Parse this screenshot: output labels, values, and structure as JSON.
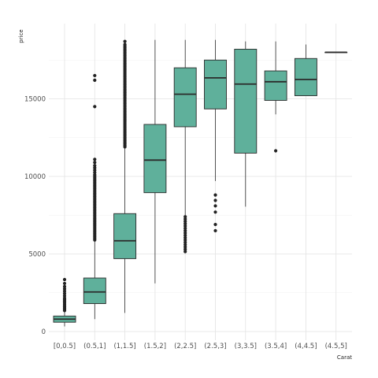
{
  "chart_data": {
    "type": "box",
    "xlabel": "Carat",
    "ylabel": "price",
    "ylim": [
      0,
      19500
    ],
    "yticks": [
      0,
      5000,
      10000,
      15000
    ],
    "grid": true,
    "colors": {
      "fill": "#5fb09b",
      "stroke": "#2b2b2b",
      "outlier": "#222222",
      "grid_major": "#e3e3e3",
      "grid_minor": "#f1f1f1",
      "background": "#ffffff"
    },
    "categories": [
      "[0,0.5]",
      "(0.5,1]",
      "(1,1.5]",
      "(1.5,2]",
      "(2,2.5]",
      "(2.5,3]",
      "(3,3.5]",
      "(3.5,4]",
      "(4,4.5]",
      "(4.5,5]"
    ],
    "boxes": [
      {
        "category": "[0,0.5]",
        "whisker_low": 330,
        "q1": 600,
        "median": 800,
        "q3": 1000,
        "whisker_high": 1300,
        "outliers": [
          1350,
          1420,
          1500,
          1580,
          1650,
          1750,
          1850,
          1950,
          2050,
          2150,
          2300,
          2450,
          2600,
          2750,
          2900,
          3100,
          3350
        ]
      },
      {
        "category": "(0.5,1]",
        "whisker_low": 800,
        "q1": 1800,
        "median": 2550,
        "q3": 3450,
        "whisker_high": 5800,
        "outliers": [
          5900,
          6000,
          6100,
          6200,
          6300,
          6400,
          6500,
          6600,
          6700,
          6800,
          6900,
          7000,
          7100,
          7200,
          7300,
          7400,
          7500,
          7600,
          7700,
          7800,
          7900,
          8000,
          8100,
          8200,
          8300,
          8400,
          8500,
          8600,
          8700,
          8800,
          8900,
          9000,
          9100,
          9200,
          9300,
          9400,
          9500,
          9600,
          9700,
          9800,
          9900,
          10000,
          10100,
          10250,
          10400,
          10550,
          10700,
          10900,
          11100,
          14500,
          16200,
          16500
        ]
      },
      {
        "category": "(1,1.5]",
        "whisker_low": 1200,
        "q1": 4700,
        "median": 5850,
        "q3": 7600,
        "whisker_high": 11800,
        "outliers": [
          11900,
          12000,
          12100,
          12200,
          12300,
          12400,
          12500,
          12600,
          12700,
          12800,
          12900,
          13000,
          13100,
          13200,
          13300,
          13400,
          13500,
          13600,
          13700,
          13800,
          13900,
          14000,
          14100,
          14200,
          14300,
          14400,
          14500,
          14600,
          14700,
          14800,
          14900,
          15000,
          15100,
          15200,
          15300,
          15400,
          15500,
          15600,
          15700,
          15800,
          15900,
          16000,
          16100,
          16200,
          16300,
          16400,
          16500,
          16600,
          16700,
          16800,
          16900,
          17000,
          17100,
          17200,
          17300,
          17400,
          17500,
          17600,
          17700,
          17800,
          17900,
          18000,
          18100,
          18200,
          18300,
          18400,
          18500,
          18700
        ]
      },
      {
        "category": "(1.5,2]",
        "whisker_low": 3100,
        "q1": 8950,
        "median": 11050,
        "q3": 13350,
        "whisker_high": 18800,
        "outliers": []
      },
      {
        "category": "(2,2.5]",
        "whisker_low": 7500,
        "q1": 13200,
        "median": 15300,
        "q3": 17000,
        "whisker_high": 18800,
        "outliers": [
          5150,
          5300,
          5450,
          5600,
          5750,
          5900,
          6050,
          6200,
          6350,
          6500,
          6650,
          6800,
          6950,
          7100,
          7250,
          7400
        ]
      },
      {
        "category": "(2.5,3]",
        "whisker_low": 9700,
        "q1": 14350,
        "median": 16350,
        "q3": 17500,
        "whisker_high": 18800,
        "outliers": [
          6500,
          6900,
          7700,
          8100,
          8450,
          8800
        ]
      },
      {
        "category": "(3,3.5]",
        "whisker_low": 8050,
        "q1": 11500,
        "median": 15950,
        "q3": 18200,
        "whisker_high": 18700,
        "outliers": []
      },
      {
        "category": "(3.5,4]",
        "whisker_low": 14000,
        "q1": 14900,
        "median": 16100,
        "q3": 16800,
        "whisker_high": 18700,
        "outliers": [
          11650
        ]
      },
      {
        "category": "(4,4.5]",
        "whisker_low": 15200,
        "q1": 15200,
        "median": 16250,
        "q3": 17600,
        "whisker_high": 18500,
        "outliers": []
      },
      {
        "category": "(4.5,5]",
        "whisker_low": 18000,
        "q1": 18000,
        "median": 18000,
        "q3": 18000,
        "whisker_high": 18000,
        "outliers": []
      }
    ]
  }
}
